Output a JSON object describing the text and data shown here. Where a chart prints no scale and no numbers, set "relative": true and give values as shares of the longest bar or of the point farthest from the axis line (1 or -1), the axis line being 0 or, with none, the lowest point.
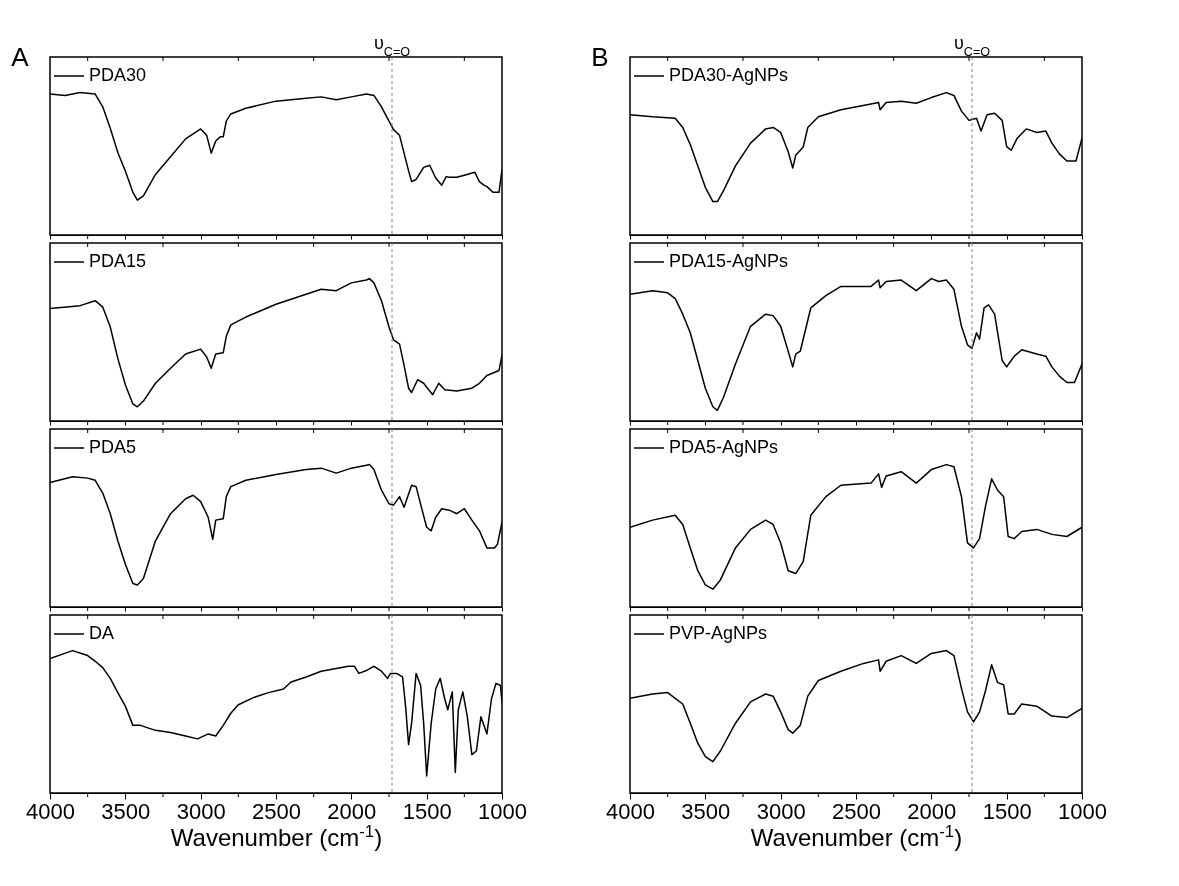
{
  "chart_data": [
    {
      "type": "line",
      "annotations": [
        "A"
      ],
      "relative": true,
      "legend": "top left",
      "tick_labels": false,
      "xlim": [
        4000,
        1000
      ],
      "xticks": [
        4000,
        {
          "value": 3750,
          "label": null
        },
        3500,
        {
          "value": 3250,
          "label": null
        },
        3000,
        {
          "value": 2750,
          "label": null
        },
        2500,
        {
          "value": 2250,
          "label": null
        },
        2000,
        {
          "value": 1750,
          "label": null
        },
        1500,
        {
          "value": 1250,
          "label": null
        },
        1000
      ],
      "ref_lines": [
        {
          "axis": "x",
          "value": 1730,
          "label": "υ$_{C=O}$",
          "color": "#808080",
          "line_style": "dashed"
        }
      ],
      "x": [
        4000,
        3900,
        3800,
        3700,
        3650,
        3600,
        3550,
        3500,
        3450,
        3420,
        3380,
        3300,
        3200,
        3100,
        3000,
        2960,
        2930,
        2900,
        2870,
        2850,
        2830,
        2800,
        2700,
        2500,
        2300,
        2200,
        2100,
        2000,
        1900,
        1850,
        1800,
        1750,
        1720,
        1680,
        1650,
        1620,
        1600,
        1570,
        1520,
        1480,
        1440,
        1400,
        1370,
        1350,
        1300,
        1250,
        1180,
        1150,
        1120,
        1100,
        1060,
        1020,
        1000
      ],
      "series": [
        {
          "name": "PDA30",
          "color": "#000000",
          "values": [
            0.99,
            0.98,
            1.0,
            0.99,
            0.9,
            0.75,
            0.58,
            0.45,
            0.3,
            0.245,
            0.275,
            0.425,
            0.55,
            0.675,
            0.745,
            0.7,
            0.575,
            0.66,
            0.69,
            0.69,
            0.8,
            0.85,
            0.89,
            0.94,
            0.96,
            0.97,
            0.95,
            0.97,
            0.99,
            0.98,
            0.9,
            0.8,
            0.74,
            0.7,
            0.575,
            0.45,
            0.375,
            0.39,
            0.475,
            0.49,
            0.4,
            0.35,
            0.41,
            0.405,
            0.405,
            0.42,
            0.44,
            0.375,
            0.35,
            0.34,
            0.3,
            0.3,
            0.46
          ]
        }
      ]
    },
    {
      "type": "line",
      "relative": true,
      "legend": "top left",
      "tick_labels": false,
      "xlim": [
        4000,
        1000
      ],
      "xticks": [
        4000,
        {
          "value": 3750,
          "label": null
        },
        3500,
        {
          "value": 3250,
          "label": null
        },
        3000,
        {
          "value": 2750,
          "label": null
        },
        2500,
        {
          "value": 2250,
          "label": null
        },
        2000,
        {
          "value": 1750,
          "label": null
        },
        1500,
        {
          "value": 1250,
          "label": null
        },
        1000
      ],
      "ref_lines": [
        {
          "axis": "x",
          "value": 1730,
          "color": "#808080",
          "line_style": "dashed"
        }
      ],
      "x": [
        4000,
        3800,
        3700,
        3650,
        3600,
        3550,
        3500,
        3450,
        3420,
        3380,
        3300,
        3200,
        3100,
        3000,
        2960,
        2930,
        2900,
        2850,
        2830,
        2800,
        2700,
        2500,
        2300,
        2200,
        2100,
        2000,
        1900,
        1880,
        1850,
        1800,
        1750,
        1720,
        1680,
        1650,
        1620,
        1600,
        1560,
        1520,
        1480,
        1460,
        1420,
        1380,
        1300,
        1200,
        1150,
        1100,
        1020,
        1000
      ],
      "series": [
        {
          "name": "PDA15",
          "color": "#000000",
          "values": [
            0.79,
            0.81,
            0.845,
            0.8,
            0.66,
            0.44,
            0.255,
            0.12,
            0.1,
            0.14,
            0.265,
            0.37,
            0.47,
            0.505,
            0.45,
            0.37,
            0.47,
            0.48,
            0.595,
            0.675,
            0.73,
            0.82,
            0.89,
            0.925,
            0.915,
            0.97,
            0.99,
            1.0,
            0.97,
            0.845,
            0.66,
            0.57,
            0.54,
            0.39,
            0.23,
            0.2,
            0.29,
            0.265,
            0.21,
            0.185,
            0.265,
            0.22,
            0.21,
            0.23,
            0.265,
            0.32,
            0.355,
            0.46
          ]
        }
      ]
    },
    {
      "type": "line",
      "relative": true,
      "legend": "top left",
      "tick_labels": false,
      "xlim": [
        4000,
        1000
      ],
      "xticks": [
        4000,
        {
          "value": 3750,
          "label": null
        },
        3500,
        {
          "value": 3250,
          "label": null
        },
        3000,
        {
          "value": 2750,
          "label": null
        },
        2500,
        {
          "value": 2250,
          "label": null
        },
        2000,
        {
          "value": 1750,
          "label": null
        },
        1500,
        {
          "value": 1250,
          "label": null
        },
        1000
      ],
      "ref_lines": [
        {
          "axis": "x",
          "value": 1730,
          "color": "#808080",
          "line_style": "dashed"
        }
      ],
      "x": [
        4000,
        3850,
        3750,
        3700,
        3650,
        3600,
        3550,
        3500,
        3450,
        3420,
        3380,
        3300,
        3200,
        3100,
        3050,
        3000,
        2950,
        2920,
        2900,
        2850,
        2830,
        2800,
        2700,
        2500,
        2300,
        2200,
        2100,
        2000,
        1900,
        1880,
        1850,
        1800,
        1750,
        1720,
        1680,
        1650,
        1600,
        1570,
        1530,
        1500,
        1470,
        1440,
        1400,
        1350,
        1300,
        1250,
        1200,
        1150,
        1100,
        1050,
        1030,
        1000
      ],
      "series": [
        {
          "name": "PDA5",
          "color": "#000000",
          "values": [
            0.875,
            0.915,
            0.905,
            0.89,
            0.8,
            0.655,
            0.465,
            0.3,
            0.165,
            0.155,
            0.2,
            0.465,
            0.655,
            0.76,
            0.785,
            0.74,
            0.63,
            0.475,
            0.61,
            0.62,
            0.775,
            0.845,
            0.89,
            0.93,
            0.965,
            0.975,
            0.94,
            0.975,
            0.995,
            1.0,
            0.965,
            0.82,
            0.725,
            0.715,
            0.775,
            0.7,
            0.855,
            0.845,
            0.68,
            0.56,
            0.535,
            0.63,
            0.69,
            0.68,
            0.655,
            0.69,
            0.61,
            0.535,
            0.415,
            0.415,
            0.44,
            0.595
          ]
        }
      ]
    },
    {
      "type": "line",
      "relative": true,
      "legend": "top left",
      "xlabel": "Wavenumber (cm$^{-1}$)",
      "xlim": [
        4000,
        1000
      ],
      "xticks": [
        4000,
        {
          "value": 3750,
          "label": null
        },
        3500,
        {
          "value": 3250,
          "label": null
        },
        3000,
        {
          "value": 2750,
          "label": null
        },
        2500,
        {
          "value": 2250,
          "label": null
        },
        2000,
        {
          "value": 1750,
          "label": null
        },
        1500,
        {
          "value": 1250,
          "label": null
        },
        1000
      ],
      "ref_lines": [
        {
          "axis": "x",
          "value": 1730,
          "color": "#808080",
          "line_style": "dashed"
        }
      ],
      "x": [
        4000,
        3850,
        3750,
        3700,
        3650,
        3600,
        3550,
        3500,
        3450,
        3400,
        3300,
        3200,
        3100,
        3020,
        2950,
        2900,
        2850,
        2800,
        2750,
        2650,
        2550,
        2450,
        2400,
        2300,
        2200,
        2100,
        2020,
        1980,
        1950,
        1900,
        1850,
        1800,
        1760,
        1740,
        1700,
        1660,
        1640,
        1620,
        1600,
        1570,
        1540,
        1520,
        1500,
        1470,
        1440,
        1410,
        1380,
        1360,
        1330,
        1310,
        1290,
        1260,
        1230,
        1200,
        1170,
        1140,
        1100,
        1070,
        1040,
        1010,
        1000
      ],
      "series": [
        {
          "name": "DA",
          "color": "#000000",
          "values": [
            0.945,
            1.0,
            0.965,
            0.925,
            0.88,
            0.805,
            0.705,
            0.61,
            0.475,
            0.475,
            0.44,
            0.425,
            0.4,
            0.38,
            0.415,
            0.4,
            0.475,
            0.56,
            0.62,
            0.67,
            0.705,
            0.73,
            0.78,
            0.815,
            0.855,
            0.875,
            0.89,
            0.89,
            0.84,
            0.86,
            0.89,
            0.855,
            0.805,
            0.84,
            0.84,
            0.815,
            0.61,
            0.34,
            0.49,
            0.84,
            0.755,
            0.49,
            0.12,
            0.49,
            0.73,
            0.805,
            0.66,
            0.585,
            0.71,
            0.145,
            0.585,
            0.71,
            0.535,
            0.27,
            0.295,
            0.535,
            0.415,
            0.66,
            0.77,
            0.755,
            0.635
          ]
        }
      ]
    },
    {
      "type": "line",
      "annotations": [
        "B"
      ],
      "relative": true,
      "legend": "top left",
      "tick_labels": false,
      "xlim": [
        4000,
        1000
      ],
      "xticks": [
        4000,
        {
          "value": 3750,
          "label": null
        },
        3500,
        {
          "value": 3250,
          "label": null
        },
        3000,
        {
          "value": 2750,
          "label": null
        },
        2500,
        {
          "value": 2250,
          "label": null
        },
        2000,
        {
          "value": 1750,
          "label": null
        },
        1500,
        {
          "value": 1250,
          "label": null
        },
        1000
      ],
      "ref_lines": [
        {
          "axis": "x",
          "value": 1730,
          "label": "υ$_{C=O}$",
          "color": "#808080",
          "line_style": "dashed"
        }
      ],
      "x": [
        4000,
        3850,
        3700,
        3650,
        3600,
        3550,
        3500,
        3450,
        3420,
        3380,
        3300,
        3200,
        3100,
        3050,
        3000,
        2950,
        2920,
        2900,
        2870,
        2850,
        2820,
        2750,
        2600,
        2400,
        2350,
        2340,
        2300,
        2200,
        2100,
        2000,
        1900,
        1850,
        1800,
        1750,
        1700,
        1670,
        1630,
        1580,
        1530,
        1500,
        1470,
        1430,
        1370,
        1300,
        1240,
        1200,
        1150,
        1100,
        1040,
        1000
      ],
      "series": [
        {
          "name": "PDA30-AgNPs",
          "color": "#000000",
          "values": [
            0.845,
            0.83,
            0.82,
            0.755,
            0.635,
            0.485,
            0.335,
            0.235,
            0.235,
            0.31,
            0.485,
            0.645,
            0.745,
            0.755,
            0.72,
            0.585,
            0.47,
            0.56,
            0.595,
            0.62,
            0.755,
            0.83,
            0.88,
            0.92,
            0.93,
            0.88,
            0.93,
            0.94,
            0.925,
            0.965,
            1.0,
            0.98,
            0.87,
            0.805,
            0.82,
            0.73,
            0.845,
            0.855,
            0.805,
            0.62,
            0.595,
            0.68,
            0.745,
            0.72,
            0.73,
            0.645,
            0.57,
            0.52,
            0.52,
            0.68
          ]
        }
      ]
    },
    {
      "type": "line",
      "relative": true,
      "legend": "top left",
      "tick_labels": false,
      "xlim": [
        4000,
        1000
      ],
      "xticks": [
        4000,
        {
          "value": 3750,
          "label": null
        },
        3500,
        {
          "value": 3250,
          "label": null
        },
        3000,
        {
          "value": 2750,
          "label": null
        },
        2500,
        {
          "value": 2250,
          "label": null
        },
        2000,
        {
          "value": 1750,
          "label": null
        },
        1500,
        {
          "value": 1250,
          "label": null
        },
        1000
      ],
      "ref_lines": [
        {
          "axis": "x",
          "value": 1730,
          "color": "#808080",
          "line_style": "dashed"
        }
      ],
      "x": [
        4000,
        3850,
        3750,
        3700,
        3650,
        3600,
        3550,
        3500,
        3450,
        3420,
        3380,
        3300,
        3200,
        3100,
        3050,
        3000,
        2950,
        2920,
        2900,
        2870,
        2840,
        2800,
        2700,
        2600,
        2400,
        2350,
        2340,
        2300,
        2200,
        2100,
        2000,
        1950,
        1900,
        1850,
        1800,
        1760,
        1730,
        1700,
        1680,
        1650,
        1620,
        1580,
        1530,
        1500,
        1450,
        1400,
        1300,
        1240,
        1200,
        1150,
        1100,
        1050,
        1000
      ],
      "series": [
        {
          "name": "PDA15-AgNPs",
          "color": "#000000",
          "values": [
            0.89,
            0.915,
            0.9,
            0.86,
            0.75,
            0.62,
            0.425,
            0.23,
            0.1,
            0.075,
            0.165,
            0.4,
            0.665,
            0.75,
            0.74,
            0.665,
            0.49,
            0.38,
            0.47,
            0.49,
            0.62,
            0.795,
            0.88,
            0.945,
            0.945,
            0.99,
            0.935,
            0.98,
            0.99,
            0.915,
            1.0,
            0.98,
            0.99,
            0.925,
            0.665,
            0.535,
            0.51,
            0.62,
            0.575,
            0.795,
            0.815,
            0.75,
            0.425,
            0.38,
            0.455,
            0.5,
            0.47,
            0.455,
            0.38,
            0.315,
            0.27,
            0.27,
            0.4
          ]
        }
      ]
    },
    {
      "type": "line",
      "relative": true,
      "legend": "top left",
      "tick_labels": false,
      "xlim": [
        4000,
        1000
      ],
      "xticks": [
        4000,
        {
          "value": 3750,
          "label": null
        },
        3500,
        {
          "value": 3250,
          "label": null
        },
        3000,
        {
          "value": 2750,
          "label": null
        },
        2500,
        {
          "value": 2250,
          "label": null
        },
        2000,
        {
          "value": 1750,
          "label": null
        },
        1500,
        {
          "value": 1250,
          "label": null
        },
        1000
      ],
      "ref_lines": [
        {
          "axis": "x",
          "value": 1730,
          "color": "#808080",
          "line_style": "dashed"
        }
      ],
      "x": [
        4000,
        3850,
        3700,
        3650,
        3600,
        3550,
        3500,
        3450,
        3400,
        3300,
        3200,
        3100,
        3050,
        3000,
        2950,
        2900,
        2870,
        2850,
        2800,
        2700,
        2600,
        2400,
        2350,
        2330,
        2300,
        2200,
        2100,
        2000,
        1900,
        1850,
        1800,
        1760,
        1720,
        1680,
        1640,
        1600,
        1560,
        1520,
        1490,
        1450,
        1400,
        1300,
        1200,
        1100,
        1000
      ],
      "series": [
        {
          "name": "PDA5-AgNPs",
          "color": "#000000",
          "values": [
            0.56,
            0.61,
            0.645,
            0.58,
            0.415,
            0.255,
            0.155,
            0.125,
            0.19,
            0.415,
            0.545,
            0.61,
            0.58,
            0.45,
            0.255,
            0.235,
            0.285,
            0.32,
            0.645,
            0.775,
            0.855,
            0.87,
            0.935,
            0.84,
            0.92,
            0.95,
            0.87,
            0.965,
            1.0,
            0.985,
            0.775,
            0.45,
            0.415,
            0.48,
            0.71,
            0.9,
            0.82,
            0.775,
            0.495,
            0.48,
            0.53,
            0.545,
            0.51,
            0.495,
            0.56
          ]
        }
      ]
    },
    {
      "type": "line",
      "relative": true,
      "legend": "top left",
      "xlabel": "Wavenumber (cm$^{-1}$)",
      "xlim": [
        4000,
        1000
      ],
      "xticks": [
        4000,
        {
          "value": 3750,
          "label": null
        },
        3500,
        {
          "value": 3250,
          "label": null
        },
        3000,
        {
          "value": 2750,
          "label": null
        },
        2500,
        {
          "value": 2250,
          "label": null
        },
        2000,
        {
          "value": 1750,
          "label": null
        },
        1500,
        {
          "value": 1250,
          "label": null
        },
        1000
      ],
      "ref_lines": [
        {
          "axis": "x",
          "value": 1730,
          "color": "#808080",
          "line_style": "dashed"
        }
      ],
      "x": [
        4000,
        3850,
        3750,
        3700,
        3650,
        3600,
        3550,
        3500,
        3450,
        3400,
        3300,
        3200,
        3100,
        3050,
        3000,
        2950,
        2920,
        2870,
        2820,
        2750,
        2600,
        2450,
        2350,
        2340,
        2300,
        2200,
        2100,
        2000,
        1900,
        1850,
        1800,
        1760,
        1720,
        1680,
        1640,
        1600,
        1560,
        1520,
        1490,
        1450,
        1400,
        1300,
        1200,
        1100,
        1000
      ],
      "series": [
        {
          "name": "PVP-AgNPs",
          "color": "#000000",
          "values": [
            0.665,
            0.695,
            0.705,
            0.665,
            0.625,
            0.49,
            0.35,
            0.255,
            0.22,
            0.295,
            0.49,
            0.64,
            0.695,
            0.68,
            0.57,
            0.445,
            0.42,
            0.475,
            0.68,
            0.79,
            0.855,
            0.91,
            0.935,
            0.855,
            0.925,
            0.965,
            0.91,
            0.98,
            1.0,
            0.965,
            0.735,
            0.57,
            0.5,
            0.57,
            0.72,
            0.9,
            0.775,
            0.76,
            0.555,
            0.555,
            0.625,
            0.61,
            0.54,
            0.53,
            0.595
          ]
        }
      ]
    }
  ]
}
